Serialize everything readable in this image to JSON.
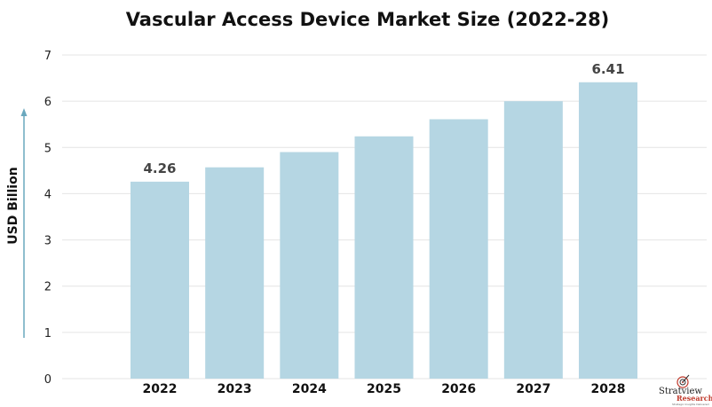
{
  "chart_data": {
    "type": "bar",
    "title": "Vascular Access Device Market Size (2022-28)",
    "xlabel": "",
    "ylabel": "USD Billion",
    "categories": [
      "2022",
      "2023",
      "2024",
      "2025",
      "2026",
      "2027",
      "2028"
    ],
    "values": [
      4.26,
      4.57,
      4.9,
      5.24,
      5.61,
      6.0,
      6.41
    ],
    "data_labels": [
      {
        "category": "2022",
        "text": "4.26"
      },
      {
        "category": "2028",
        "text": "6.41"
      }
    ],
    "ylim": [
      0,
      7
    ],
    "yticks": [
      "0",
      "1",
      "2",
      "3",
      "4",
      "5",
      "6",
      "7"
    ],
    "grid": true,
    "bar_color": "#b5d6e3",
    "arrow_color": "#6aa8be"
  },
  "logo": {
    "brand": "Stratview",
    "sub": "Research",
    "tagline": "Strategic Insights Delivered"
  }
}
